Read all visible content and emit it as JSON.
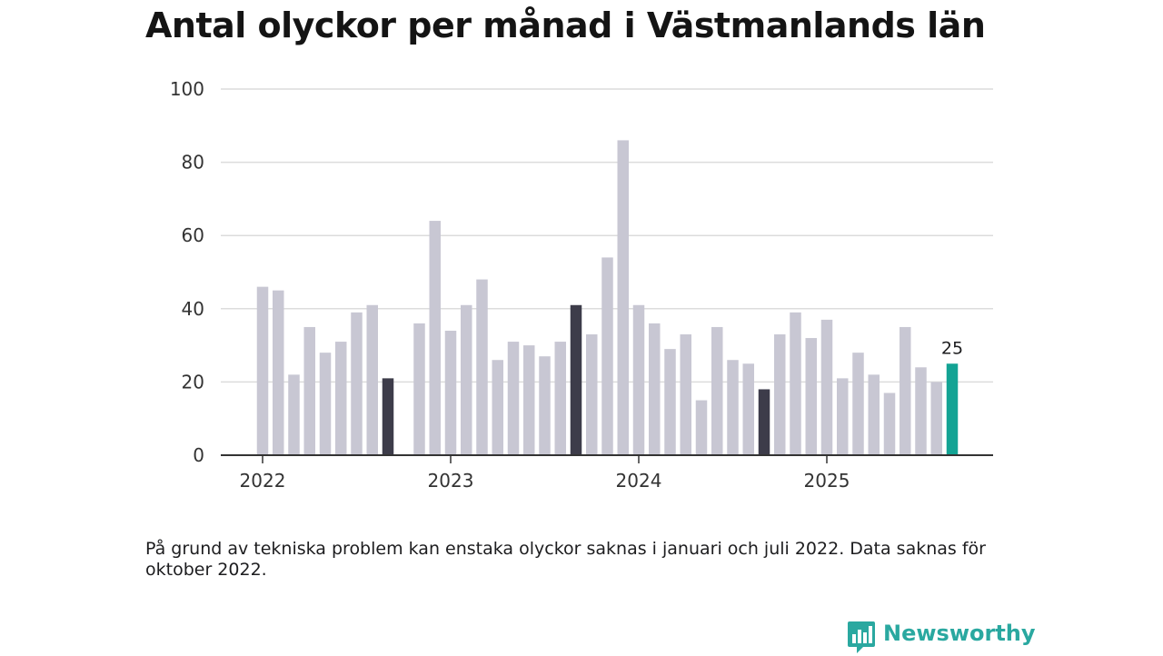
{
  "title": "Antal olyckor per månad i Västmanlands län",
  "note": "På grund av tekniska problem kan enstaka olyckor saknas i januari och juli 2022. Data saknas för oktober 2022.",
  "brand": {
    "name": "Newsworthy",
    "icon": "bar-chart-speech-bubble-icon"
  },
  "colors": {
    "bar": "#c8c7d3",
    "highlight": "#3d3c4a",
    "latest": "#13a394",
    "grid": "#dcdcdc",
    "axis": "#333333",
    "brand": "#2aa8a0"
  },
  "chart_data": {
    "type": "bar",
    "title": "Antal olyckor per månad i Västmanlands län",
    "xlabel": "",
    "ylabel": "",
    "ylim": [
      0,
      100
    ],
    "yticks": [
      0,
      20,
      40,
      60,
      80,
      100
    ],
    "xtick_labels": [
      "2022",
      "2023",
      "2024",
      "2025"
    ],
    "annotation": {
      "month": "2025-09",
      "text": "25"
    },
    "categories": [
      "2022-01",
      "2022-02",
      "2022-03",
      "2022-04",
      "2022-05",
      "2022-06",
      "2022-07",
      "2022-08",
      "2022-09",
      "2022-10",
      "2022-11",
      "2022-12",
      "2023-01",
      "2023-02",
      "2023-03",
      "2023-04",
      "2023-05",
      "2023-06",
      "2023-07",
      "2023-08",
      "2023-09",
      "2023-10",
      "2023-11",
      "2023-12",
      "2024-01",
      "2024-02",
      "2024-03",
      "2024-04",
      "2024-05",
      "2024-06",
      "2024-07",
      "2024-08",
      "2024-09",
      "2024-10",
      "2024-11",
      "2024-12",
      "2025-01",
      "2025-02",
      "2025-03",
      "2025-04",
      "2025-05",
      "2025-06",
      "2025-07",
      "2025-08",
      "2025-09"
    ],
    "values": [
      46,
      45,
      22,
      35,
      28,
      31,
      39,
      41,
      21,
      null,
      36,
      64,
      34,
      41,
      48,
      26,
      31,
      30,
      27,
      31,
      41,
      33,
      54,
      86,
      41,
      36,
      29,
      33,
      15,
      35,
      26,
      25,
      18,
      33,
      39,
      32,
      37,
      21,
      28,
      22,
      17,
      35,
      24,
      20,
      25
    ],
    "highlighted_months": [
      "2022-09",
      "2023-09",
      "2024-09"
    ],
    "latest_month": "2025-09"
  }
}
